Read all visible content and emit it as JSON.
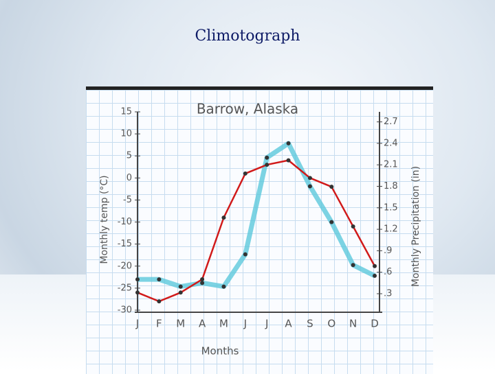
{
  "slide_title": "Climotograph",
  "chart_data": {
    "type": "line",
    "title": "Barrow, Alaska",
    "x_label": "Months",
    "y_label": "Monthly temp (°C)",
    "y2_label": "Monthly Precipitation (in)",
    "categories": [
      "J",
      "F",
      "M",
      "A",
      "M",
      "J",
      "J",
      "A",
      "S",
      "O",
      "N",
      "D"
    ],
    "series": [
      {
        "color": "#d11a1a",
        "values": [
          -26,
          -28,
          -26,
          -23,
          -9,
          1,
          3,
          4,
          0,
          -2,
          -11,
          -20
        ]
      },
      {
        "color": "#5cc8dc",
        "axis": "y2",
        "values": [
          0.5,
          0.5,
          0.4,
          0.45,
          0.4,
          0.85,
          2.2,
          2.4,
          1.8,
          1.3,
          0.7,
          0.55
        ]
      }
    ],
    "ylim": [
      -30,
      15
    ],
    "yticks": [
      -30,
      -25,
      -20,
      -15,
      -10,
      -5,
      0,
      5,
      10,
      15
    ],
    "y2lim": [
      0.07,
      2.84
    ],
    "y2ticks": [
      {
        "value": 0.3,
        "label": ".3"
      },
      {
        "value": 0.6,
        "label": ".6"
      },
      {
        "value": 0.9,
        "label": ".9"
      },
      1.2,
      1.5,
      1.8,
      2.1,
      2.4,
      2.7
    ]
  }
}
